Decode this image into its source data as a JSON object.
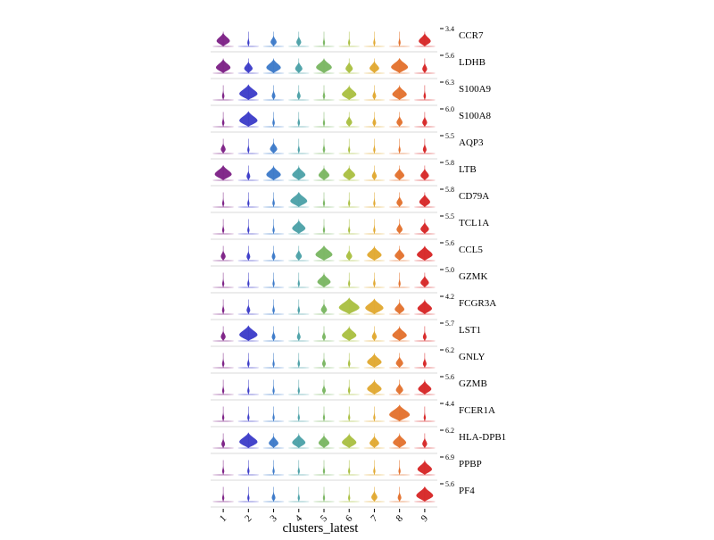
{
  "chart_data": {
    "type": "stacked-violin",
    "xlabel": "clusters_latest",
    "categories": [
      "1",
      "2",
      "3",
      "4",
      "5",
      "6",
      "7",
      "8",
      "9"
    ],
    "colors": [
      "#7b1f85",
      "#3a3ac8",
      "#3a78c8",
      "#4aa0a6",
      "#78b560",
      "#a9bf3f",
      "#e0a82e",
      "#e3702b",
      "#d62424"
    ],
    "genes": [
      {
        "name": "CCR7",
        "ymax": "3.4",
        "widths": [
          0.55,
          0.05,
          0.25,
          0.2,
          0.05,
          0.04,
          0.05,
          0.08,
          0.5
        ]
      },
      {
        "name": "LDHB",
        "ymax": "5.6",
        "widths": [
          0.6,
          0.35,
          0.6,
          0.3,
          0.65,
          0.3,
          0.4,
          0.7,
          0.2
        ]
      },
      {
        "name": "S100A9",
        "ymax": "6.3",
        "widths": [
          0.1,
          0.75,
          0.15,
          0.15,
          0.1,
          0.6,
          0.15,
          0.6,
          0.1
        ]
      },
      {
        "name": "S100A8",
        "ymax": "6.0",
        "widths": [
          0.1,
          0.75,
          0.1,
          0.1,
          0.05,
          0.25,
          0.15,
          0.25,
          0.2
        ]
      },
      {
        "name": "AQP3",
        "ymax": "5.5",
        "widths": [
          0.2,
          0.05,
          0.3,
          0.05,
          0.1,
          0.04,
          0.04,
          0.04,
          0.15
        ]
      },
      {
        "name": "LTB",
        "ymax": "5.8",
        "widths": [
          0.7,
          0.15,
          0.6,
          0.55,
          0.45,
          0.5,
          0.2,
          0.4,
          0.35
        ]
      },
      {
        "name": "CD79A",
        "ymax": "5.8",
        "widths": [
          0.05,
          0.04,
          0.1,
          0.7,
          0.05,
          0.04,
          0.05,
          0.25,
          0.45
        ]
      },
      {
        "name": "TCL1A",
        "ymax": "5.5",
        "widths": [
          0.05,
          0.04,
          0.05,
          0.55,
          0.05,
          0.04,
          0.05,
          0.25,
          0.35
        ]
      },
      {
        "name": "CCL5",
        "ymax": "5.6",
        "widths": [
          0.2,
          0.15,
          0.15,
          0.25,
          0.7,
          0.25,
          0.6,
          0.4,
          0.65
        ]
      },
      {
        "name": "GZMK",
        "ymax": "5.0",
        "widths": [
          0.05,
          0.05,
          0.05,
          0.05,
          0.55,
          0.04,
          0.1,
          0.05,
          0.35
        ]
      },
      {
        "name": "FCGR3A",
        "ymax": "4.2",
        "widths": [
          0.1,
          0.15,
          0.1,
          0.1,
          0.25,
          0.85,
          0.75,
          0.4,
          0.6
        ]
      },
      {
        "name": "LST1",
        "ymax": "5.7",
        "widths": [
          0.2,
          0.75,
          0.15,
          0.15,
          0.15,
          0.6,
          0.2,
          0.6,
          0.15
        ]
      },
      {
        "name": "GNLY",
        "ymax": "6.2",
        "widths": [
          0.1,
          0.1,
          0.05,
          0.1,
          0.15,
          0.1,
          0.6,
          0.3,
          0.15
        ]
      },
      {
        "name": "GZMB",
        "ymax": "5.6",
        "widths": [
          0.05,
          0.05,
          0.05,
          0.05,
          0.15,
          0.1,
          0.6,
          0.3,
          0.55
        ]
      },
      {
        "name": "FCER1A",
        "ymax": "4.4",
        "widths": [
          0.05,
          0.05,
          0.04,
          0.04,
          0.04,
          0.04,
          0.04,
          0.85,
          0.04
        ]
      },
      {
        "name": "HLA-DPB1",
        "ymax": "6.2",
        "widths": [
          0.15,
          0.75,
          0.4,
          0.55,
          0.45,
          0.6,
          0.4,
          0.55,
          0.2
        ]
      },
      {
        "name": "PPBP",
        "ymax": "6.9",
        "widths": [
          0.04,
          0.08,
          0.04,
          0.04,
          0.04,
          0.04,
          0.04,
          0.04,
          0.6
        ]
      },
      {
        "name": "PF4",
        "ymax": "5.6",
        "widths": [
          0.04,
          0.04,
          0.15,
          0.04,
          0.04,
          0.04,
          0.25,
          0.15,
          0.7
        ]
      }
    ]
  }
}
